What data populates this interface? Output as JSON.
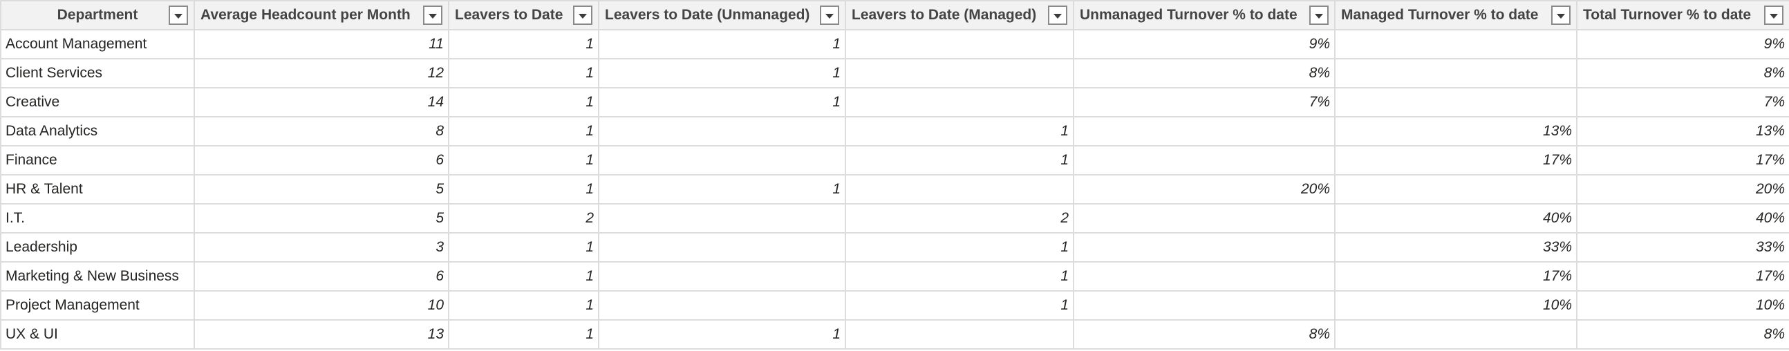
{
  "columns": [
    {
      "label": "Department"
    },
    {
      "label": "Average Headcount per Month"
    },
    {
      "label": "Leavers to Date"
    },
    {
      "label": "Leavers to Date (Unmanaged)"
    },
    {
      "label": "Leavers to Date (Managed)"
    },
    {
      "label": "Unmanaged Turnover % to date"
    },
    {
      "label": "Managed Turnover % to date"
    },
    {
      "label": "Total Turnover % to date"
    }
  ],
  "filter_icon": "dropdown-arrow-icon",
  "rows": [
    {
      "department": "Account Management",
      "avg_headcount": "11",
      "leavers": "1",
      "leavers_unmanaged": "1",
      "leavers_managed": "",
      "unmanaged_pct": "9%",
      "managed_pct": "",
      "total_pct": "9%"
    },
    {
      "department": "Client Services",
      "avg_headcount": "12",
      "leavers": "1",
      "leavers_unmanaged": "1",
      "leavers_managed": "",
      "unmanaged_pct": "8%",
      "managed_pct": "",
      "total_pct": "8%"
    },
    {
      "department": "Creative",
      "avg_headcount": "14",
      "leavers": "1",
      "leavers_unmanaged": "1",
      "leavers_managed": "",
      "unmanaged_pct": "7%",
      "managed_pct": "",
      "total_pct": "7%"
    },
    {
      "department": "Data Analytics",
      "avg_headcount": "8",
      "leavers": "1",
      "leavers_unmanaged": "",
      "leavers_managed": "1",
      "unmanaged_pct": "",
      "managed_pct": "13%",
      "total_pct": "13%"
    },
    {
      "department": "Finance",
      "avg_headcount": "6",
      "leavers": "1",
      "leavers_unmanaged": "",
      "leavers_managed": "1",
      "unmanaged_pct": "",
      "managed_pct": "17%",
      "total_pct": "17%"
    },
    {
      "department": "HR & Talent",
      "avg_headcount": "5",
      "leavers": "1",
      "leavers_unmanaged": "1",
      "leavers_managed": "",
      "unmanaged_pct": "20%",
      "managed_pct": "",
      "total_pct": "20%"
    },
    {
      "department": "I.T.",
      "avg_headcount": "5",
      "leavers": "2",
      "leavers_unmanaged": "",
      "leavers_managed": "2",
      "unmanaged_pct": "",
      "managed_pct": "40%",
      "total_pct": "40%"
    },
    {
      "department": "Leadership",
      "avg_headcount": "3",
      "leavers": "1",
      "leavers_unmanaged": "",
      "leavers_managed": "1",
      "unmanaged_pct": "",
      "managed_pct": "33%",
      "total_pct": "33%"
    },
    {
      "department": "Marketing & New Business",
      "avg_headcount": "6",
      "leavers": "1",
      "leavers_unmanaged": "",
      "leavers_managed": "1",
      "unmanaged_pct": "",
      "managed_pct": "17%",
      "total_pct": "17%"
    },
    {
      "department": "Project Management",
      "avg_headcount": "10",
      "leavers": "1",
      "leavers_unmanaged": "",
      "leavers_managed": "1",
      "unmanaged_pct": "",
      "managed_pct": "10%",
      "total_pct": "10%"
    },
    {
      "department": "UX & UI",
      "avg_headcount": "13",
      "leavers": "1",
      "leavers_unmanaged": "1",
      "leavers_managed": "",
      "unmanaged_pct": "8%",
      "managed_pct": "",
      "total_pct": "8%"
    }
  ],
  "colors": {
    "header_bg": "#f2f2f2",
    "grid_line": "#dcdcdc",
    "text": "#252423"
  }
}
